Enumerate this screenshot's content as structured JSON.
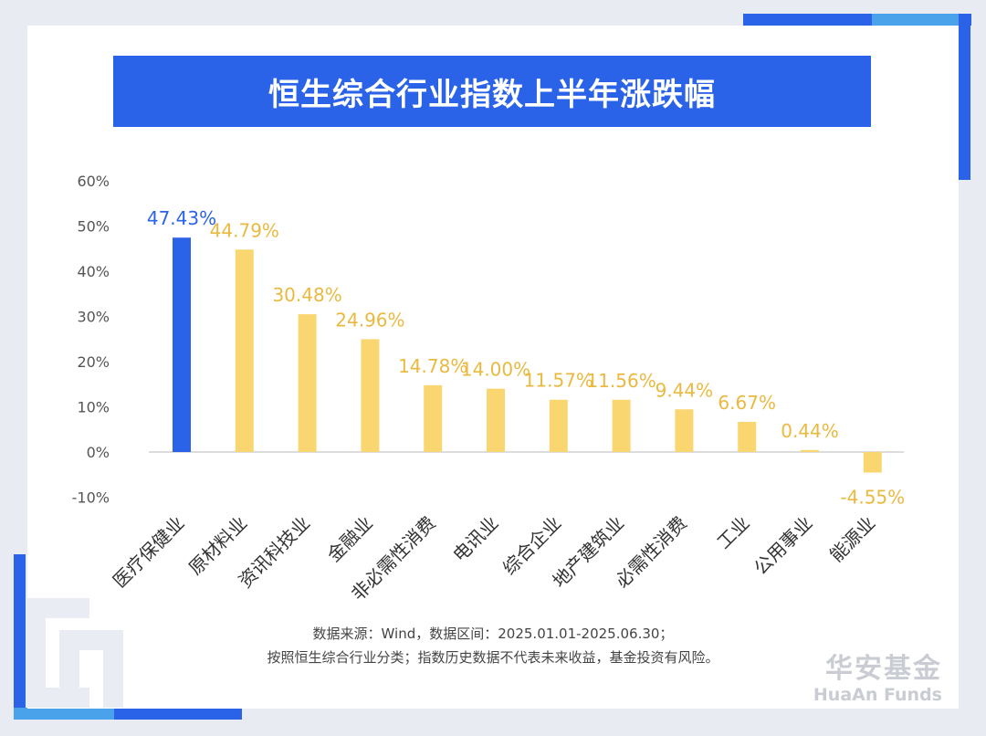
{
  "title": "恒生综合行业指数上半年涨跌幅",
  "colors": {
    "highlight": "#2b63e8",
    "bar": "#f9d670",
    "bar_label": "#eab93f",
    "axis_text": "#555555",
    "title_bg": "#2b63e8"
  },
  "chart_data": {
    "type": "bar",
    "title": "恒生综合行业指数上半年涨跌幅",
    "categories": [
      "医疗保健业",
      "原材料业",
      "资讯科技业",
      "金融业",
      "非必需性消费",
      "电讯业",
      "综合企业",
      "地产建筑业",
      "必需性消费",
      "工业",
      "公用事业",
      "能源业"
    ],
    "values": [
      47.43,
      44.79,
      30.48,
      24.96,
      14.78,
      14.0,
      11.57,
      11.56,
      9.44,
      6.67,
      0.44,
      -4.55
    ],
    "value_labels": [
      "47.43%",
      "44.79%",
      "30.48%",
      "24.96%",
      "14.78%",
      "14.00%",
      "11.57%",
      "11.56%",
      "9.44%",
      "6.67%",
      "0.44%",
      "-4.55%"
    ],
    "highlight_index": 0,
    "ylim": [
      -10,
      60
    ],
    "yticks": [
      60,
      50,
      40,
      30,
      20,
      10,
      0,
      -10
    ],
    "ytick_labels": [
      "60%",
      "50%",
      "40%",
      "30%",
      "20%",
      "10%",
      "0%",
      "-10%"
    ],
    "xlabel": "",
    "ylabel": "",
    "grid": false,
    "legend": "none"
  },
  "notes": {
    "line1": "数据来源：Wind，数据区间：2025.01.01-2025.06.30；",
    "line2": "按照恒生综合行业分类；指数历史数据不代表未来收益，基金投资有风险。"
  },
  "brand": {
    "cn": "华安基金",
    "en": "HuaAn Funds"
  }
}
